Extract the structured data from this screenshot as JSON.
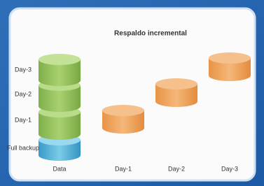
{
  "title": "Respaldo incremental",
  "stack_labels": [
    "Day-3",
    "Day-2",
    "Day-1",
    "Full backup"
  ],
  "column_labels": [
    "Data",
    "Day-1",
    "Day-2",
    "Day-3"
  ]
}
